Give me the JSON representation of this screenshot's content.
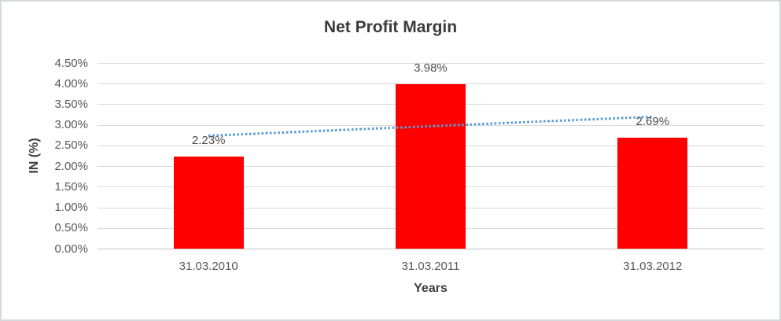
{
  "chart": {
    "title": "Net Profit Margin",
    "y_axis_title": "IN (%)",
    "x_axis_title": "Years"
  },
  "chart_data": {
    "type": "bar",
    "title": "Net Profit Margin",
    "xlabel": "Years",
    "ylabel": "IN (%)",
    "categories": [
      "31.03.2010",
      "31.03.2011",
      "31.03.2012"
    ],
    "values": [
      2.23,
      3.98,
      2.69
    ],
    "data_labels": [
      "2.23%",
      "3.98%",
      "2.69%"
    ],
    "ytick_labels": [
      "0.00%",
      "0.50%",
      "1.00%",
      "1.50%",
      "2.00%",
      "2.50%",
      "3.00%",
      "3.50%",
      "4.00%",
      "4.50%"
    ],
    "ylim": [
      0,
      4.5
    ],
    "ytick_step": 0.5,
    "grid": true,
    "legend": false,
    "bar_color": "#ff0000",
    "gridline_color": "#d9d9d9",
    "trendline": {
      "type": "linear",
      "style": "dotted",
      "color": "#5b9bd5",
      "start_value": 2.74,
      "end_value": 3.2
    }
  }
}
